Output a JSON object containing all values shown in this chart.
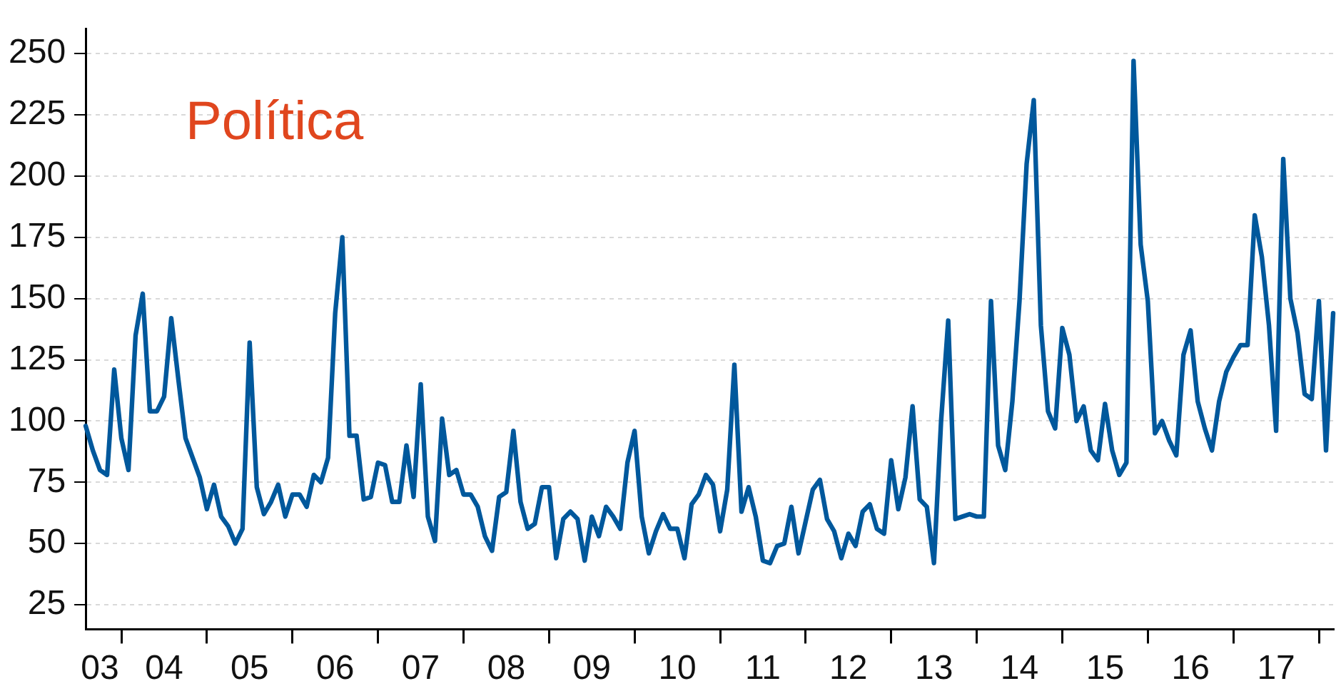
{
  "chart_data": {
    "type": "line",
    "title": "Política",
    "x": [
      "2003-08",
      "2003-09",
      "2003-10",
      "2003-11",
      "2003-12",
      "2004-01",
      "2004-02",
      "2004-03",
      "2004-04",
      "2004-05",
      "2004-06",
      "2004-07",
      "2004-08",
      "2004-09",
      "2004-10",
      "2004-11",
      "2004-12",
      "2005-01",
      "2005-02",
      "2005-03",
      "2005-04",
      "2005-05",
      "2005-06",
      "2005-07",
      "2005-08",
      "2005-09",
      "2005-10",
      "2005-11",
      "2005-12",
      "2006-01",
      "2006-02",
      "2006-03",
      "2006-04",
      "2006-05",
      "2006-06",
      "2006-07",
      "2006-08",
      "2006-09",
      "2006-10",
      "2006-11",
      "2006-12",
      "2007-01",
      "2007-02",
      "2007-03",
      "2007-04",
      "2007-05",
      "2007-06",
      "2007-07",
      "2007-08",
      "2007-09",
      "2007-10",
      "2007-11",
      "2007-12",
      "2008-01",
      "2008-02",
      "2008-03",
      "2008-04",
      "2008-05",
      "2008-06",
      "2008-07",
      "2008-08",
      "2008-09",
      "2008-10",
      "2008-11",
      "2008-12",
      "2009-01",
      "2009-02",
      "2009-03",
      "2009-04",
      "2009-05",
      "2009-06",
      "2009-07",
      "2009-08",
      "2009-09",
      "2009-10",
      "2009-11",
      "2009-12",
      "2010-01",
      "2010-02",
      "2010-03",
      "2010-04",
      "2010-05",
      "2010-06",
      "2010-07",
      "2010-08",
      "2010-09",
      "2010-10",
      "2010-11",
      "2010-12",
      "2011-01",
      "2011-02",
      "2011-03",
      "2011-04",
      "2011-05",
      "2011-06",
      "2011-07",
      "2011-08",
      "2011-09",
      "2011-10",
      "2011-11",
      "2011-12",
      "2012-01",
      "2012-02",
      "2012-03",
      "2012-04",
      "2012-05",
      "2012-06",
      "2012-07",
      "2012-08",
      "2012-09",
      "2012-10",
      "2012-11",
      "2012-12",
      "2013-01",
      "2013-02",
      "2013-03",
      "2013-04",
      "2013-05",
      "2013-06",
      "2013-07",
      "2013-08",
      "2013-09",
      "2013-10",
      "2013-11",
      "2013-12",
      "2014-01",
      "2014-02",
      "2014-03",
      "2014-04",
      "2014-05",
      "2014-06",
      "2014-07",
      "2014-08",
      "2014-09",
      "2014-10",
      "2014-11",
      "2014-12",
      "2015-01",
      "2015-02",
      "2015-03",
      "2015-04",
      "2015-05",
      "2015-06",
      "2015-07",
      "2015-08",
      "2015-09",
      "2015-10",
      "2015-11",
      "2015-12",
      "2016-01",
      "2016-02",
      "2016-03",
      "2016-04",
      "2016-05",
      "2016-06",
      "2016-07",
      "2016-08",
      "2016-09",
      "2016-10",
      "2016-11",
      "2016-12",
      "2017-01",
      "2017-02",
      "2017-03",
      "2017-04",
      "2017-05",
      "2017-06",
      "2017-07",
      "2017-08",
      "2017-09",
      "2017-10",
      "2017-11",
      "2017-12",
      "2018-01",
      "2018-02",
      "2018-03"
    ],
    "series": [
      {
        "color": "#00589c",
        "values": [
          98,
          88,
          80,
          78,
          121,
          93,
          80,
          135,
          152,
          104,
          104,
          110,
          142,
          117,
          93,
          85,
          77,
          64,
          74,
          61,
          57,
          50,
          56,
          132,
          73,
          62,
          67,
          74,
          61,
          70,
          70,
          65,
          78,
          75,
          85,
          144,
          175,
          94,
          94,
          68,
          69,
          83,
          82,
          67,
          67,
          90,
          69,
          115,
          61,
          51,
          101,
          78,
          80,
          70,
          70,
          65,
          53,
          47,
          69,
          71,
          96,
          67,
          56,
          58,
          73,
          73,
          44,
          60,
          63,
          60,
          43,
          61,
          53,
          65,
          61,
          56,
          83,
          96,
          61,
          46,
          55,
          62,
          56,
          56,
          44,
          66,
          70,
          78,
          74,
          55,
          72,
          123,
          63,
          73,
          61,
          43,
          42,
          49,
          50,
          65,
          46,
          59,
          72,
          76,
          60,
          55,
          44,
          54,
          49,
          63,
          66,
          56,
          54,
          84,
          64,
          77,
          106,
          68,
          65,
          42,
          100,
          141,
          60,
          61,
          62,
          61,
          61,
          149,
          90,
          80,
          108,
          149,
          205,
          231,
          139,
          104,
          97,
          138,
          127,
          100,
          106,
          88,
          84,
          107,
          88,
          78,
          83,
          247,
          172,
          149,
          95,
          100,
          92,
          86,
          127,
          137,
          108,
          97,
          88,
          108,
          120,
          126,
          131,
          131,
          184,
          167,
          139,
          96,
          207,
          150,
          136,
          111,
          109,
          149,
          88,
          144
        ]
      }
    ],
    "xlim": [
      "2003-08",
      "2018-03"
    ],
    "xticks": [
      {
        "value": "2003-10",
        "label": "03"
      },
      {
        "value": "2004-07",
        "label": "04"
      },
      {
        "value": "2005-07",
        "label": "05"
      },
      {
        "value": "2006-07",
        "label": "06"
      },
      {
        "value": "2007-07",
        "label": "07"
      },
      {
        "value": "2008-07",
        "label": "08"
      },
      {
        "value": "2009-07",
        "label": "09"
      },
      {
        "value": "2010-07",
        "label": "10"
      },
      {
        "value": "2011-07",
        "label": "11"
      },
      {
        "value": "2012-07",
        "label": "12"
      },
      {
        "value": "2013-07",
        "label": "13"
      },
      {
        "value": "2014-07",
        "label": "14"
      },
      {
        "value": "2015-07",
        "label": "15"
      },
      {
        "value": "2016-07",
        "label": "16"
      },
      {
        "value": "2017-07",
        "label": "17"
      },
      {
        "value": "2004",
        "label": null
      },
      {
        "value": "2005",
        "label": null
      },
      {
        "value": "2006",
        "label": null
      },
      {
        "value": "2007",
        "label": null
      },
      {
        "value": "2008",
        "label": null
      },
      {
        "value": "2009",
        "label": null
      },
      {
        "value": "2010",
        "label": null
      },
      {
        "value": "2011",
        "label": null
      },
      {
        "value": "2012",
        "label": null
      },
      {
        "value": "2013",
        "label": null
      },
      {
        "value": "2014",
        "label": null
      },
      {
        "value": "2015",
        "label": null
      },
      {
        "value": "2016",
        "label": null
      },
      {
        "value": "2017",
        "label": null
      },
      {
        "value": "2018",
        "label": null
      }
    ],
    "ylim": [
      15,
      260
    ],
    "yticks": [
      25,
      50,
      75,
      100,
      125,
      150,
      175,
      200,
      225,
      250
    ],
    "grid": "y",
    "legend": false,
    "marker": "none",
    "line_style": "solid"
  }
}
